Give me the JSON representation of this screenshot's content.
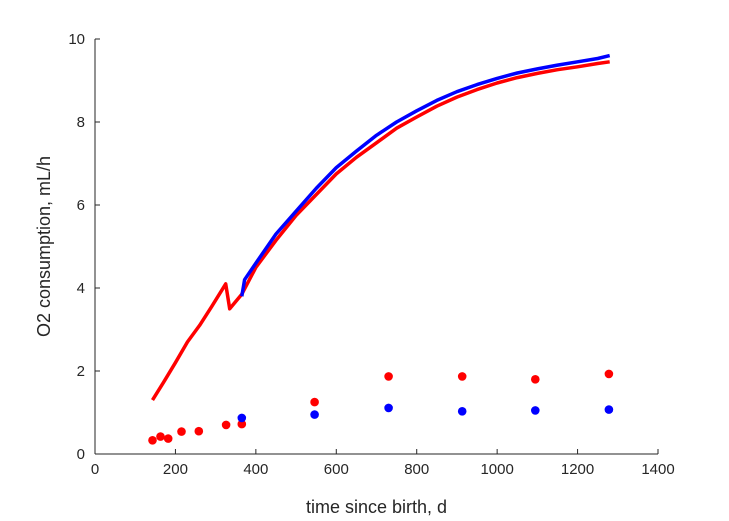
{
  "chart_data": {
    "type": "line",
    "title": "",
    "xlabel": "time since birth, d",
    "ylabel": "O2 consumption, mL/h",
    "xlim": [
      0,
      1400
    ],
    "ylim": [
      0,
      10
    ],
    "xticks": [
      0,
      200,
      400,
      600,
      800,
      1000,
      1200,
      1400
    ],
    "yticks": [
      0,
      2,
      4,
      6,
      8,
      10
    ],
    "grid": false,
    "legend": "none",
    "series": [
      {
        "kind": "line",
        "color": "#ff0000",
        "x": [
          143,
          170,
          200,
          230,
          260,
          290,
          325,
          335,
          365,
          400,
          450,
          500,
          550,
          600,
          650,
          700,
          750,
          800,
          850,
          900,
          950,
          1000,
          1050,
          1100,
          1150,
          1200,
          1250,
          1280
        ],
        "y": [
          1.3,
          1.72,
          2.2,
          2.7,
          3.1,
          3.55,
          4.1,
          3.5,
          3.85,
          4.5,
          5.15,
          5.75,
          6.25,
          6.75,
          7.15,
          7.5,
          7.85,
          8.12,
          8.38,
          8.6,
          8.78,
          8.94,
          9.07,
          9.17,
          9.26,
          9.33,
          9.41,
          9.45
        ]
      },
      {
        "kind": "line",
        "color": "#0000ff",
        "x": [
          365,
          372,
          400,
          450,
          500,
          550,
          600,
          650,
          700,
          750,
          800,
          850,
          900,
          950,
          1000,
          1050,
          1100,
          1150,
          1200,
          1250,
          1280
        ],
        "y": [
          3.8,
          4.2,
          4.6,
          5.3,
          5.85,
          6.4,
          6.9,
          7.3,
          7.68,
          8.0,
          8.27,
          8.52,
          8.73,
          8.9,
          9.05,
          9.18,
          9.28,
          9.37,
          9.45,
          9.53,
          9.6
        ]
      },
      {
        "kind": "scatter",
        "color": "#ff0000",
        "x": [
          143,
          163,
          182,
          215,
          258,
          326,
          365,
          546,
          730,
          913,
          1095,
          1278
        ],
        "y": [
          0.33,
          0.42,
          0.37,
          0.54,
          0.55,
          0.7,
          0.72,
          1.25,
          1.87,
          1.87,
          1.8,
          1.93
        ]
      },
      {
        "kind": "scatter",
        "color": "#0000ff",
        "x": [
          365,
          546,
          730,
          913,
          1095,
          1278
        ],
        "y": [
          0.87,
          0.95,
          1.11,
          1.03,
          1.05,
          1.07
        ]
      }
    ]
  }
}
